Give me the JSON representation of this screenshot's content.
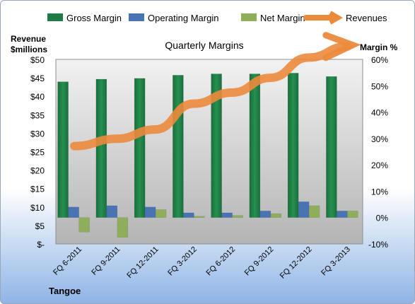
{
  "chart_data": {
    "type": "bar",
    "title": "Quarterly Margins",
    "company": "Tangoe",
    "y_left_label": [
      "Revenue",
      "$millions"
    ],
    "y_right_label": "Margin %",
    "categories": [
      "FQ 6-2011",
      "FQ 9-2011",
      "FQ 12-2011",
      "FQ 3-2012",
      "FQ 6-2012",
      "FQ 9-2012",
      "FQ 12-2012",
      "FQ 3-2013"
    ],
    "left_axis": {
      "min": 0,
      "max": 50,
      "step": 5,
      "ticks": [
        "$-",
        "$5",
        "$10",
        "$15",
        "$20",
        "$25",
        "$30",
        "$35",
        "$40",
        "$45",
        "$50"
      ]
    },
    "right_axis": {
      "min": -10,
      "max": 60,
      "step": 10,
      "ticks": [
        "-10%",
        "0%",
        "10%",
        "20%",
        "30%",
        "40%",
        "50%",
        "60%"
      ]
    },
    "series": [
      {
        "name": "Gross Margin",
        "axis": "right",
        "color": "#1e7b45",
        "values": [
          51.5,
          52.5,
          52.8,
          54.0,
          54.5,
          54.5,
          54.8,
          53.5
        ]
      },
      {
        "name": "Operating Margin",
        "axis": "right",
        "color": "#4a73b4",
        "values": [
          4.0,
          4.5,
          4.0,
          1.8,
          1.8,
          2.5,
          6.0,
          2.5
        ]
      },
      {
        "name": "Net Margin",
        "axis": "right",
        "color": "#8fae5b",
        "values": [
          -5.5,
          -7.5,
          3.0,
          0.5,
          0.8,
          1.5,
          4.5,
          2.5
        ]
      },
      {
        "name": "Revenues",
        "axis": "left",
        "color": "#ec8a3c",
        "type": "line",
        "values": [
          26.5,
          28.5,
          31.0,
          38.0,
          41.0,
          45.0,
          50.5,
          53.5
        ]
      }
    ],
    "grid": false,
    "legend": "top"
  }
}
